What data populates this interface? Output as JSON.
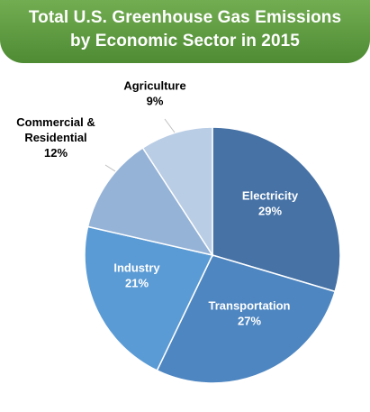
{
  "chart_data": {
    "type": "pie",
    "title": "Total U.S. Greenhouse Gas Emissions by Economic Sector in 2015",
    "title_lines": [
      "Total U.S. Greenhouse Gas Emissions",
      "by Economic Sector in 2015"
    ],
    "slices": [
      {
        "label": [
          "Electricity"
        ],
        "value": 29,
        "value_label": "29%",
        "color": "#4672a6",
        "label_color": "#ffffff",
        "label_position": "inside"
      },
      {
        "label": [
          "Transportation"
        ],
        "value": 27,
        "value_label": "27%",
        "color": "#4e86c1",
        "label_color": "#ffffff",
        "label_position": "inside"
      },
      {
        "label": [
          "Industry"
        ],
        "value": 21,
        "value_label": "21%",
        "color": "#5b9bd5",
        "label_color": "#ffffff",
        "label_position": "inside"
      },
      {
        "label": [
          "Commercial &",
          "Residential"
        ],
        "value": 12,
        "value_label": "12%",
        "color": "#95b3d7",
        "label_color": "#000000",
        "label_position": "outside"
      },
      {
        "label": [
          "Agriculture"
        ],
        "value": 9,
        "value_label": "9%",
        "color": "#b9cde5",
        "label_color": "#000000",
        "label_position": "outside"
      }
    ],
    "start_angle": "12 o'clock",
    "direction": "clockwise",
    "legend": "none"
  }
}
